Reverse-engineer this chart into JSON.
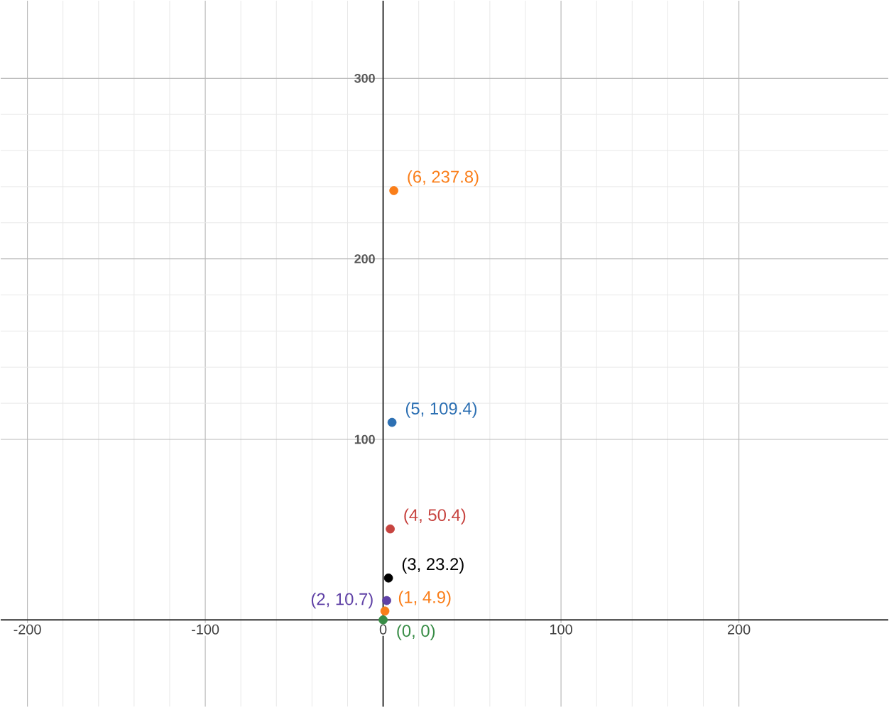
{
  "chart_data": {
    "type": "scatter",
    "marker": "circle",
    "grid": true,
    "xlim": [
      -215,
      284
    ],
    "ylim": [
      -48,
      343
    ],
    "xticks": [
      -200,
      -100,
      0,
      100,
      200
    ],
    "yticks": [
      100,
      200,
      300
    ],
    "series": [
      {
        "color": "#388c46",
        "x": [
          0
        ],
        "values": [
          0
        ],
        "value_labels": [
          "(0, 0)"
        ]
      },
      {
        "color": "#fa7e19",
        "x": [
          1
        ],
        "values": [
          4.9
        ],
        "value_labels": [
          "(1, 4.9)"
        ]
      },
      {
        "color": "#6042a6",
        "x": [
          2
        ],
        "values": [
          10.7
        ],
        "value_labels": [
          "(2, 10.7)"
        ]
      },
      {
        "color": "#000000",
        "x": [
          3
        ],
        "values": [
          23.2
        ],
        "value_labels": [
          "(3, 23.2)"
        ]
      },
      {
        "color": "#c74440",
        "x": [
          4
        ],
        "values": [
          50.4
        ],
        "value_labels": [
          "(4, 50.4)"
        ]
      },
      {
        "color": "#2d70b3",
        "x": [
          5
        ],
        "values": [
          109.4
        ],
        "value_labels": [
          "(5, 109.4)"
        ]
      },
      {
        "color": "#fa7e19",
        "x": [
          6
        ],
        "values": [
          237.8
        ],
        "value_labels": [
          "(6, 237.8)"
        ]
      }
    ]
  }
}
